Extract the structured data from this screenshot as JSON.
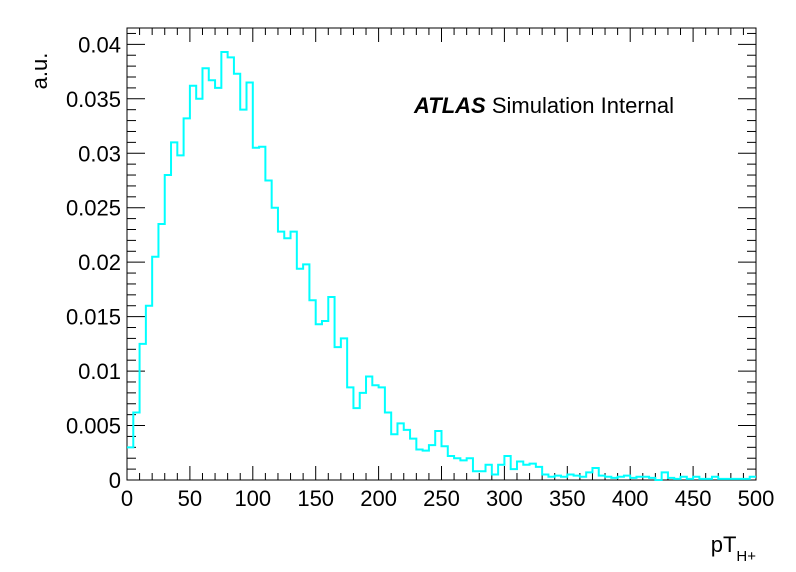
{
  "chart_data": {
    "type": "histogram",
    "annotation": {
      "bold": "ATLAS",
      "rest": " Simulation Internal"
    },
    "ylabel": "a.u.",
    "xlabel": {
      "main": "pT",
      "sub": "H+"
    },
    "xlim": [
      0,
      500
    ],
    "ylim": [
      0,
      0.0415
    ],
    "x_ticks": [
      "0",
      "50",
      "100",
      "150",
      "200",
      "250",
      "300",
      "350",
      "400",
      "450",
      "500"
    ],
    "x_tick_values": [
      0,
      50,
      100,
      150,
      200,
      250,
      300,
      350,
      400,
      450,
      500
    ],
    "y_ticks": [
      "0",
      "0.005",
      "0.01",
      "0.015",
      "0.02",
      "0.025",
      "0.03",
      "0.035",
      "0.04"
    ],
    "y_tick_values": [
      0,
      0.005,
      0.01,
      0.015,
      0.02,
      0.025,
      0.03,
      0.035,
      0.04
    ],
    "bin_width": 5,
    "series": [
      {
        "line_color": "#00ffff",
        "bin_edges_start": 0,
        "values": [
          0.003,
          0.0062,
          0.0125,
          0.016,
          0.0205,
          0.0235,
          0.028,
          0.031,
          0.0298,
          0.0332,
          0.0362,
          0.035,
          0.0378,
          0.0367,
          0.036,
          0.0393,
          0.0388,
          0.0373,
          0.034,
          0.0365,
          0.0305,
          0.0306,
          0.0275,
          0.025,
          0.0228,
          0.0222,
          0.0228,
          0.0194,
          0.0198,
          0.0165,
          0.0143,
          0.0146,
          0.0168,
          0.0122,
          0.013,
          0.0085,
          0.0066,
          0.008,
          0.0095,
          0.0087,
          0.0085,
          0.0062,
          0.0042,
          0.0052,
          0.0046,
          0.0038,
          0.0028,
          0.0027,
          0.0032,
          0.0045,
          0.0031,
          0.0022,
          0.002,
          0.0018,
          0.002,
          0.0008,
          0.0008,
          0.0014,
          0.0005,
          0.0014,
          0.0022,
          0.001,
          0.0017,
          0.0014,
          0.0015,
          0.0012,
          0.0005,
          0.0003,
          0.0004,
          0.0003,
          0.0005,
          0.0004,
          0.0003,
          0.0007,
          0.0011,
          0.0004,
          0.0003,
          0.0002,
          0.0003,
          0.0004,
          0.0002,
          0.0003,
          0.0003,
          0.0002,
          0.0,
          0.0007,
          0.0002,
          0.0001,
          0.0003,
          0.0001,
          0.0003,
          0.0001,
          0.0001,
          0.0003,
          0.0001,
          0.0001,
          0.0001,
          0.0001,
          0.0001,
          0.0003
        ]
      }
    ]
  }
}
